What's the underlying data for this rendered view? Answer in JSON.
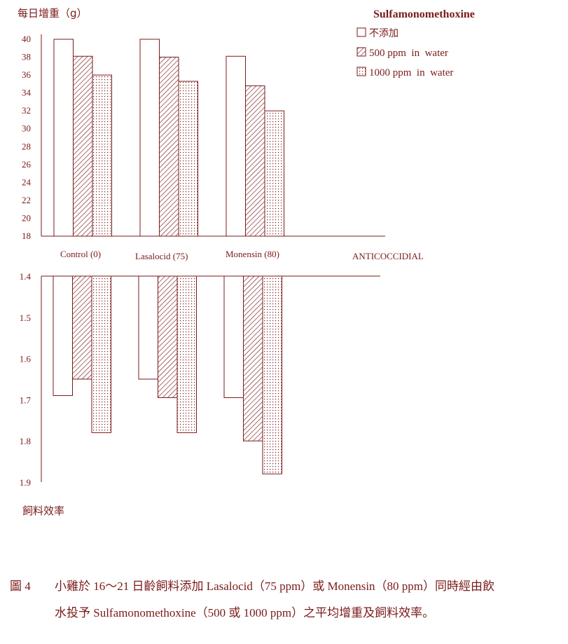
{
  "chart_data": [
    {
      "type": "bar",
      "ylabel": "每日增重（g）",
      "ylim": [
        18,
        40
      ],
      "yticks": [
        40,
        38,
        36,
        34,
        32,
        30,
        28,
        26,
        24,
        22,
        20,
        18
      ],
      "categories": [
        "Control (0)",
        "Lasalocid (75)",
        "Monensin (80)"
      ],
      "xlabel": "ANTICOCCIDIAL",
      "legend_title": "Sulfamonomethoxine",
      "series": [
        {
          "name": "不添加",
          "pattern": "empty",
          "values": [
            40.0,
            40.0,
            38.1
          ]
        },
        {
          "name": "500 ppm  in  water",
          "pattern": "diagonal-hatch",
          "values": [
            38.1,
            38.0,
            34.8
          ]
        },
        {
          "name": "1000 ppm  in  water",
          "pattern": "dotted",
          "values": [
            36.0,
            35.3,
            32.0
          ]
        }
      ]
    },
    {
      "type": "bar",
      "ylabel": "飼料效率",
      "ylim": [
        1.4,
        1.9
      ],
      "inverted": true,
      "yticks": [
        "1.4",
        "1.5",
        "1.6",
        "1.7",
        "1.8",
        "1.9"
      ],
      "categories": [
        "Control (0)",
        "Lasalocid (75)",
        "Monensin (80)"
      ],
      "series": [
        {
          "name": "不添加",
          "pattern": "empty",
          "values": [
            1.69,
            1.65,
            1.695
          ]
        },
        {
          "name": "500 ppm  in  water",
          "pattern": "diagonal-hatch",
          "values": [
            1.65,
            1.695,
            1.8
          ]
        },
        {
          "name": "1000 ppm  in  water",
          "pattern": "dotted",
          "values": [
            1.78,
            1.78,
            1.88
          ]
        }
      ]
    }
  ],
  "colors": {
    "ink": "#7a1a1a"
  },
  "caption": {
    "label": "圖 4",
    "text": "小雞於 16～21 日齡飼料添加 Lasalocid（75 ppm）或 Monensin（80 ppm）同時經由飲水投予 Sulfamonomethoxine（500 或 1000 ppm）之平均增重及飼料效率。"
  }
}
